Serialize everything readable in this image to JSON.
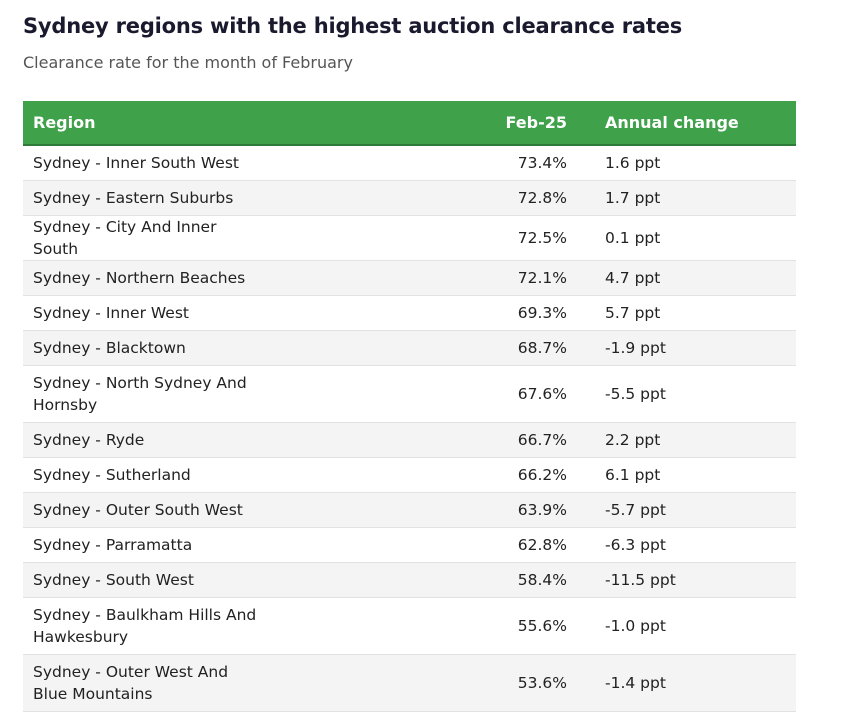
{
  "title": "Sydney regions with the highest auction clearance rates",
  "subtitle": "Clearance rate for the month of February",
  "colors": {
    "header_bg": "#3fa14a",
    "header_text": "#ffffff",
    "row_alt": "#f4f4f4"
  },
  "chart_data": {
    "type": "table",
    "title": "Sydney regions with the highest auction clearance rates",
    "subtitle": "Clearance rate for the month of February",
    "columns": [
      "Region",
      "Feb-25",
      "Annual change"
    ],
    "rows": [
      {
        "region": "Sydney - Inner South West",
        "value": "73.4%",
        "change": "1.6 ppt"
      },
      {
        "region": "Sydney - Eastern Suburbs",
        "value": "72.8%",
        "change": "1.7 ppt"
      },
      {
        "region": "Sydney - City And Inner South",
        "value": "72.5%",
        "change": "0.1 ppt"
      },
      {
        "region": "Sydney - Northern Beaches",
        "value": "72.1%",
        "change": "4.7 ppt"
      },
      {
        "region": "Sydney - Inner West",
        "value": "69.3%",
        "change": "5.7 ppt"
      },
      {
        "region": "Sydney - Blacktown",
        "value": "68.7%",
        "change": "-1.9 ppt"
      },
      {
        "region": "Sydney - North Sydney And Hornsby",
        "value": "67.6%",
        "change": "-5.5 ppt"
      },
      {
        "region": "Sydney - Ryde",
        "value": "66.7%",
        "change": "2.2 ppt"
      },
      {
        "region": "Sydney - Sutherland",
        "value": "66.2%",
        "change": "6.1 ppt"
      },
      {
        "region": "Sydney - Outer South West",
        "value": "63.9%",
        "change": "-5.7 ppt"
      },
      {
        "region": "Sydney - Parramatta",
        "value": "62.8%",
        "change": "-6.3 ppt"
      },
      {
        "region": "Sydney - South West",
        "value": "58.4%",
        "change": "-11.5 ppt"
      },
      {
        "region": "Sydney - Baulkham Hills And Hawkesbury",
        "value": "55.6%",
        "change": "-1.0 ppt"
      },
      {
        "region": "Sydney - Outer West And Blue Mountains",
        "value": "53.6%",
        "change": "-1.4 ppt"
      }
    ]
  }
}
